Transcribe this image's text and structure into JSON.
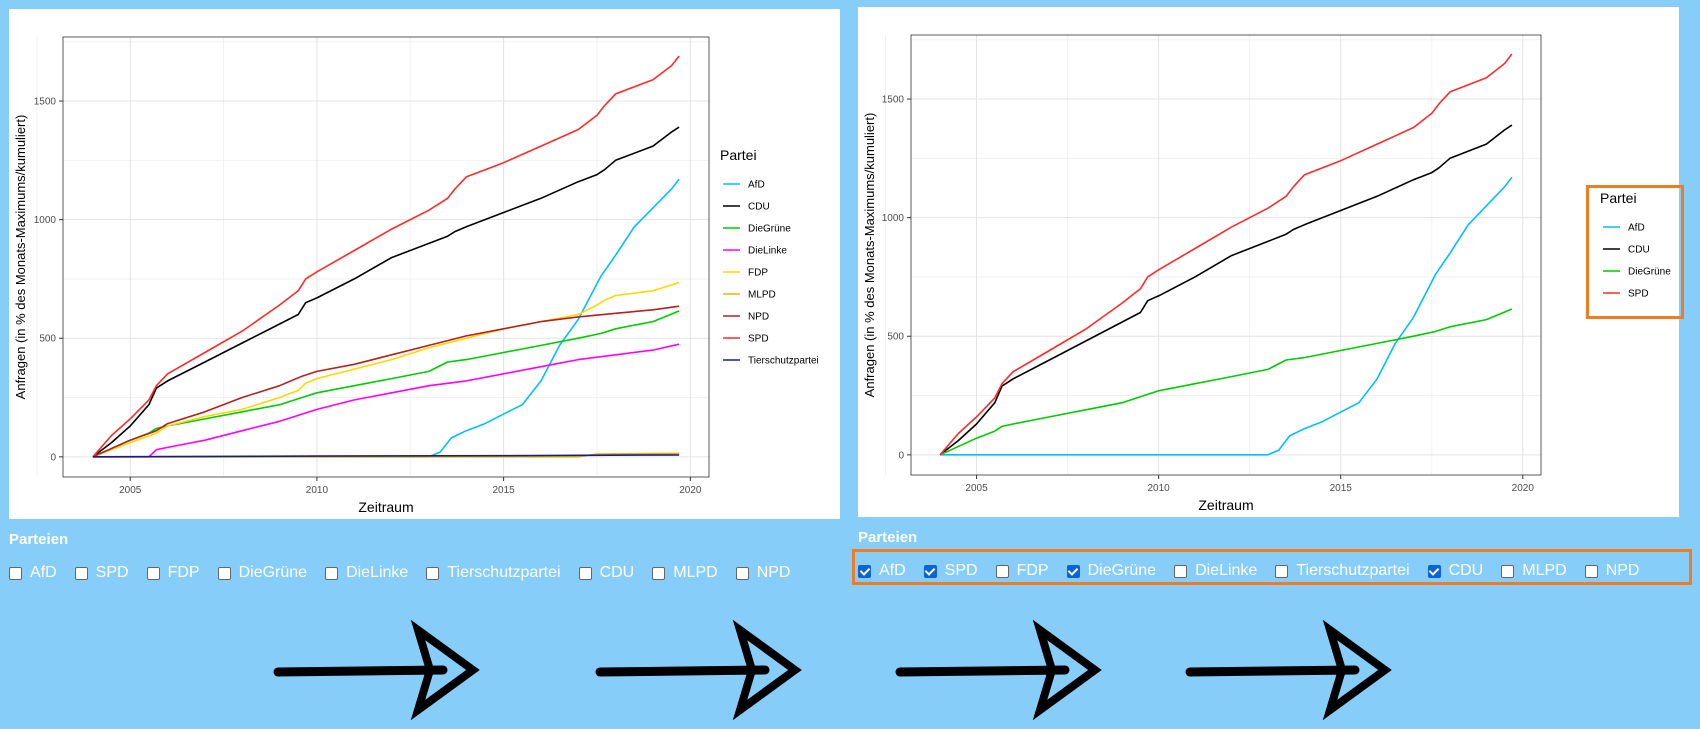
{
  "chart_data": [
    {
      "type": "line",
      "xlabel": "Zeitraum",
      "ylabel": "Anfragen (in % des Monats-Maximums/kumuliert)",
      "xticks": [
        2005,
        2010,
        2015,
        2020
      ],
      "yticks": [
        0,
        500,
        1000,
        1500
      ],
      "xlim": [
        2003.2,
        2020.5
      ],
      "ylim": [
        -85,
        1770
      ],
      "grid": true,
      "legend_title": "Partei",
      "legend_position": "right",
      "series": [
        {
          "name": "AfD",
          "color": "#00bfff",
          "x": [
            2004,
            2013.0,
            2013.3,
            2013.6,
            2014,
            2014.5,
            2015,
            2015.5,
            2016,
            2016.5,
            2017,
            2017.6,
            2018,
            2018.5,
            2019,
            2019.5,
            2019.7
          ],
          "y": [
            0,
            0,
            20,
            80,
            110,
            140,
            180,
            220,
            320,
            470,
            580,
            760,
            850,
            970,
            1050,
            1130,
            1170
          ]
        },
        {
          "name": "CDU",
          "color": "#000000",
          "x": [
            2004,
            2004.5,
            2005,
            2005.5,
            2005.7,
            2006,
            2007,
            2008,
            2009,
            2009.5,
            2009.7,
            2010,
            2011,
            2012,
            2013,
            2013.5,
            2013.7,
            2014,
            2015,
            2016,
            2017,
            2017.5,
            2017.7,
            2018,
            2019,
            2019.5,
            2019.7
          ],
          "y": [
            0,
            60,
            130,
            220,
            290,
            320,
            400,
            480,
            560,
            600,
            650,
            670,
            750,
            840,
            900,
            930,
            950,
            970,
            1030,
            1090,
            1160,
            1190,
            1210,
            1250,
            1310,
            1370,
            1390
          ]
        },
        {
          "name": "DieGrüne",
          "color": "#00cc00",
          "x": [
            2004,
            2005,
            2005.5,
            2005.7,
            2006,
            2007,
            2008,
            2009,
            2009.6,
            2010,
            2011,
            2012,
            2013,
            2013.5,
            2014,
            2015,
            2016,
            2017,
            2017.6,
            2018,
            2019,
            2019.7
          ],
          "y": [
            0,
            70,
            100,
            120,
            130,
            160,
            190,
            220,
            250,
            270,
            300,
            330,
            360,
            400,
            410,
            440,
            470,
            500,
            520,
            540,
            570,
            615
          ]
        },
        {
          "name": "DieLinke",
          "color": "#ff00ff",
          "x": [
            2004,
            2005,
            2005.5,
            2005.7,
            2006,
            2007,
            2008,
            2009,
            2009.6,
            2010,
            2011,
            2012,
            2013,
            2014,
            2015,
            2016,
            2017,
            2018,
            2019,
            2019.7
          ],
          "y": [
            0,
            0,
            0,
            30,
            40,
            70,
            110,
            150,
            180,
            200,
            240,
            270,
            300,
            320,
            350,
            380,
            410,
            430,
            450,
            475
          ]
        },
        {
          "name": "FDP",
          "color": "#ffd700",
          "x": [
            2004,
            2005,
            2005.7,
            2006,
            2007,
            2008,
            2009,
            2009.5,
            2009.7,
            2010,
            2011,
            2012,
            2013,
            2014,
            2015,
            2016,
            2017,
            2017.5,
            2017.7,
            2018,
            2019,
            2019.7
          ],
          "y": [
            0,
            60,
            100,
            130,
            170,
            200,
            250,
            280,
            310,
            330,
            370,
            410,
            460,
            500,
            540,
            570,
            600,
            640,
            660,
            680,
            700,
            735
          ]
        },
        {
          "name": "MLPD",
          "color": "#e6b800",
          "x": [
            2004,
            2017,
            2017.5,
            2019.7
          ],
          "y": [
            0,
            0,
            12,
            15
          ]
        },
        {
          "name": "NPD",
          "color": "#b22222",
          "x": [
            2004,
            2005,
            2005.7,
            2006,
            2007,
            2008,
            2009,
            2009.6,
            2010,
            2011,
            2012,
            2013,
            2014,
            2015,
            2016,
            2017,
            2018,
            2019,
            2019.7
          ],
          "y": [
            0,
            70,
            110,
            140,
            190,
            250,
            300,
            340,
            360,
            390,
            430,
            470,
            510,
            540,
            570,
            590,
            605,
            620,
            635
          ]
        },
        {
          "name": "SPD",
          "color": "#ff2a2a",
          "x": [
            2004,
            2004.5,
            2005,
            2005.5,
            2005.7,
            2006,
            2007,
            2008,
            2009,
            2009.5,
            2009.7,
            2010,
            2011,
            2012,
            2013,
            2013.5,
            2013.7,
            2014,
            2015,
            2016,
            2017,
            2017.5,
            2017.7,
            2018,
            2019,
            2019.5,
            2019.7
          ],
          "y": [
            0,
            90,
            160,
            240,
            300,
            350,
            440,
            530,
            640,
            700,
            750,
            780,
            870,
            960,
            1040,
            1090,
            1130,
            1180,
            1240,
            1310,
            1380,
            1440,
            1480,
            1530,
            1590,
            1650,
            1690
          ]
        },
        {
          "name": "Tierschutzpartei",
          "color": "#1a1a8a",
          "x": [
            2004,
            2010,
            2015,
            2019.7
          ],
          "y": [
            0,
            3,
            5,
            8
          ]
        }
      ]
    },
    {
      "type": "line",
      "xlabel": "Zeitraum",
      "ylabel": "Anfragen (in % des Monats-Maximums/kumuliert)",
      "xticks": [
        2005,
        2010,
        2015,
        2020
      ],
      "yticks": [
        0,
        500,
        1000,
        1500
      ],
      "xlim": [
        2003.2,
        2020.5
      ],
      "ylim": [
        -85,
        1770
      ],
      "grid": true,
      "legend_title": "Partei",
      "legend_position": "right",
      "series": [
        {
          "name": "AfD",
          "color": "#00bfff",
          "x": [
            2004,
            2013.0,
            2013.3,
            2013.6,
            2014,
            2014.5,
            2015,
            2015.5,
            2016,
            2016.5,
            2017,
            2017.6,
            2018,
            2018.5,
            2019,
            2019.5,
            2019.7
          ],
          "y": [
            0,
            0,
            20,
            80,
            110,
            140,
            180,
            220,
            320,
            470,
            580,
            760,
            850,
            970,
            1050,
            1130,
            1170
          ]
        },
        {
          "name": "CDU",
          "color": "#000000",
          "x": [
            2004,
            2004.5,
            2005,
            2005.5,
            2005.7,
            2006,
            2007,
            2008,
            2009,
            2009.5,
            2009.7,
            2010,
            2011,
            2012,
            2013,
            2013.5,
            2013.7,
            2014,
            2015,
            2016,
            2017,
            2017.5,
            2017.7,
            2018,
            2019,
            2019.5,
            2019.7
          ],
          "y": [
            0,
            60,
            130,
            220,
            290,
            320,
            400,
            480,
            560,
            600,
            650,
            670,
            750,
            840,
            900,
            930,
            950,
            970,
            1030,
            1090,
            1160,
            1190,
            1210,
            1250,
            1310,
            1370,
            1390
          ]
        },
        {
          "name": "DieGrüne",
          "color": "#00cc00",
          "x": [
            2004,
            2005,
            2005.5,
            2005.7,
            2006,
            2007,
            2008,
            2009,
            2009.6,
            2010,
            2011,
            2012,
            2013,
            2013.5,
            2014,
            2015,
            2016,
            2017,
            2017.6,
            2018,
            2019,
            2019.7
          ],
          "y": [
            0,
            70,
            100,
            120,
            130,
            160,
            190,
            220,
            250,
            270,
            300,
            330,
            360,
            400,
            410,
            440,
            470,
            500,
            520,
            540,
            570,
            615
          ]
        },
        {
          "name": "SPD",
          "color": "#ff2a2a",
          "x": [
            2004,
            2004.5,
            2005,
            2005.5,
            2005.7,
            2006,
            2007,
            2008,
            2009,
            2009.5,
            2009.7,
            2010,
            2011,
            2012,
            2013,
            2013.5,
            2013.7,
            2014,
            2015,
            2016,
            2017,
            2017.5,
            2017.7,
            2018,
            2019,
            2019.5,
            2019.7
          ],
          "y": [
            0,
            90,
            160,
            240,
            300,
            350,
            440,
            530,
            640,
            700,
            750,
            780,
            870,
            960,
            1040,
            1090,
            1130,
            1180,
            1240,
            1310,
            1380,
            1440,
            1480,
            1530,
            1590,
            1650,
            1690
          ]
        }
      ]
    }
  ],
  "left_panel": {
    "title": "Parteien",
    "options": [
      {
        "label": "AfD",
        "checked": false
      },
      {
        "label": "SPD",
        "checked": false
      },
      {
        "label": "FDP",
        "checked": false
      },
      {
        "label": "DieGrüne",
        "checked": false
      },
      {
        "label": "DieLinke",
        "checked": false
      },
      {
        "label": "Tierschutzpartei",
        "checked": false
      },
      {
        "label": "CDU",
        "checked": false
      },
      {
        "label": "MLPD",
        "checked": false
      },
      {
        "label": "NPD",
        "checked": false
      }
    ]
  },
  "right_panel": {
    "title": "Parteien",
    "options": [
      {
        "label": "AfD",
        "checked": true
      },
      {
        "label": "SPD",
        "checked": true
      },
      {
        "label": "FDP",
        "checked": false
      },
      {
        "label": "DieGrüne",
        "checked": true
      },
      {
        "label": "DieLinke",
        "checked": false
      },
      {
        "label": "Tierschutzpartei",
        "checked": false
      },
      {
        "label": "CDU",
        "checked": true
      },
      {
        "label": "MLPD",
        "checked": false
      },
      {
        "label": "NPD",
        "checked": false
      }
    ]
  },
  "colors": {
    "background": "#87cdf9",
    "highlight": "#f07c22",
    "checkbox_checked": "#0b63d6"
  },
  "arrow_count": 4
}
